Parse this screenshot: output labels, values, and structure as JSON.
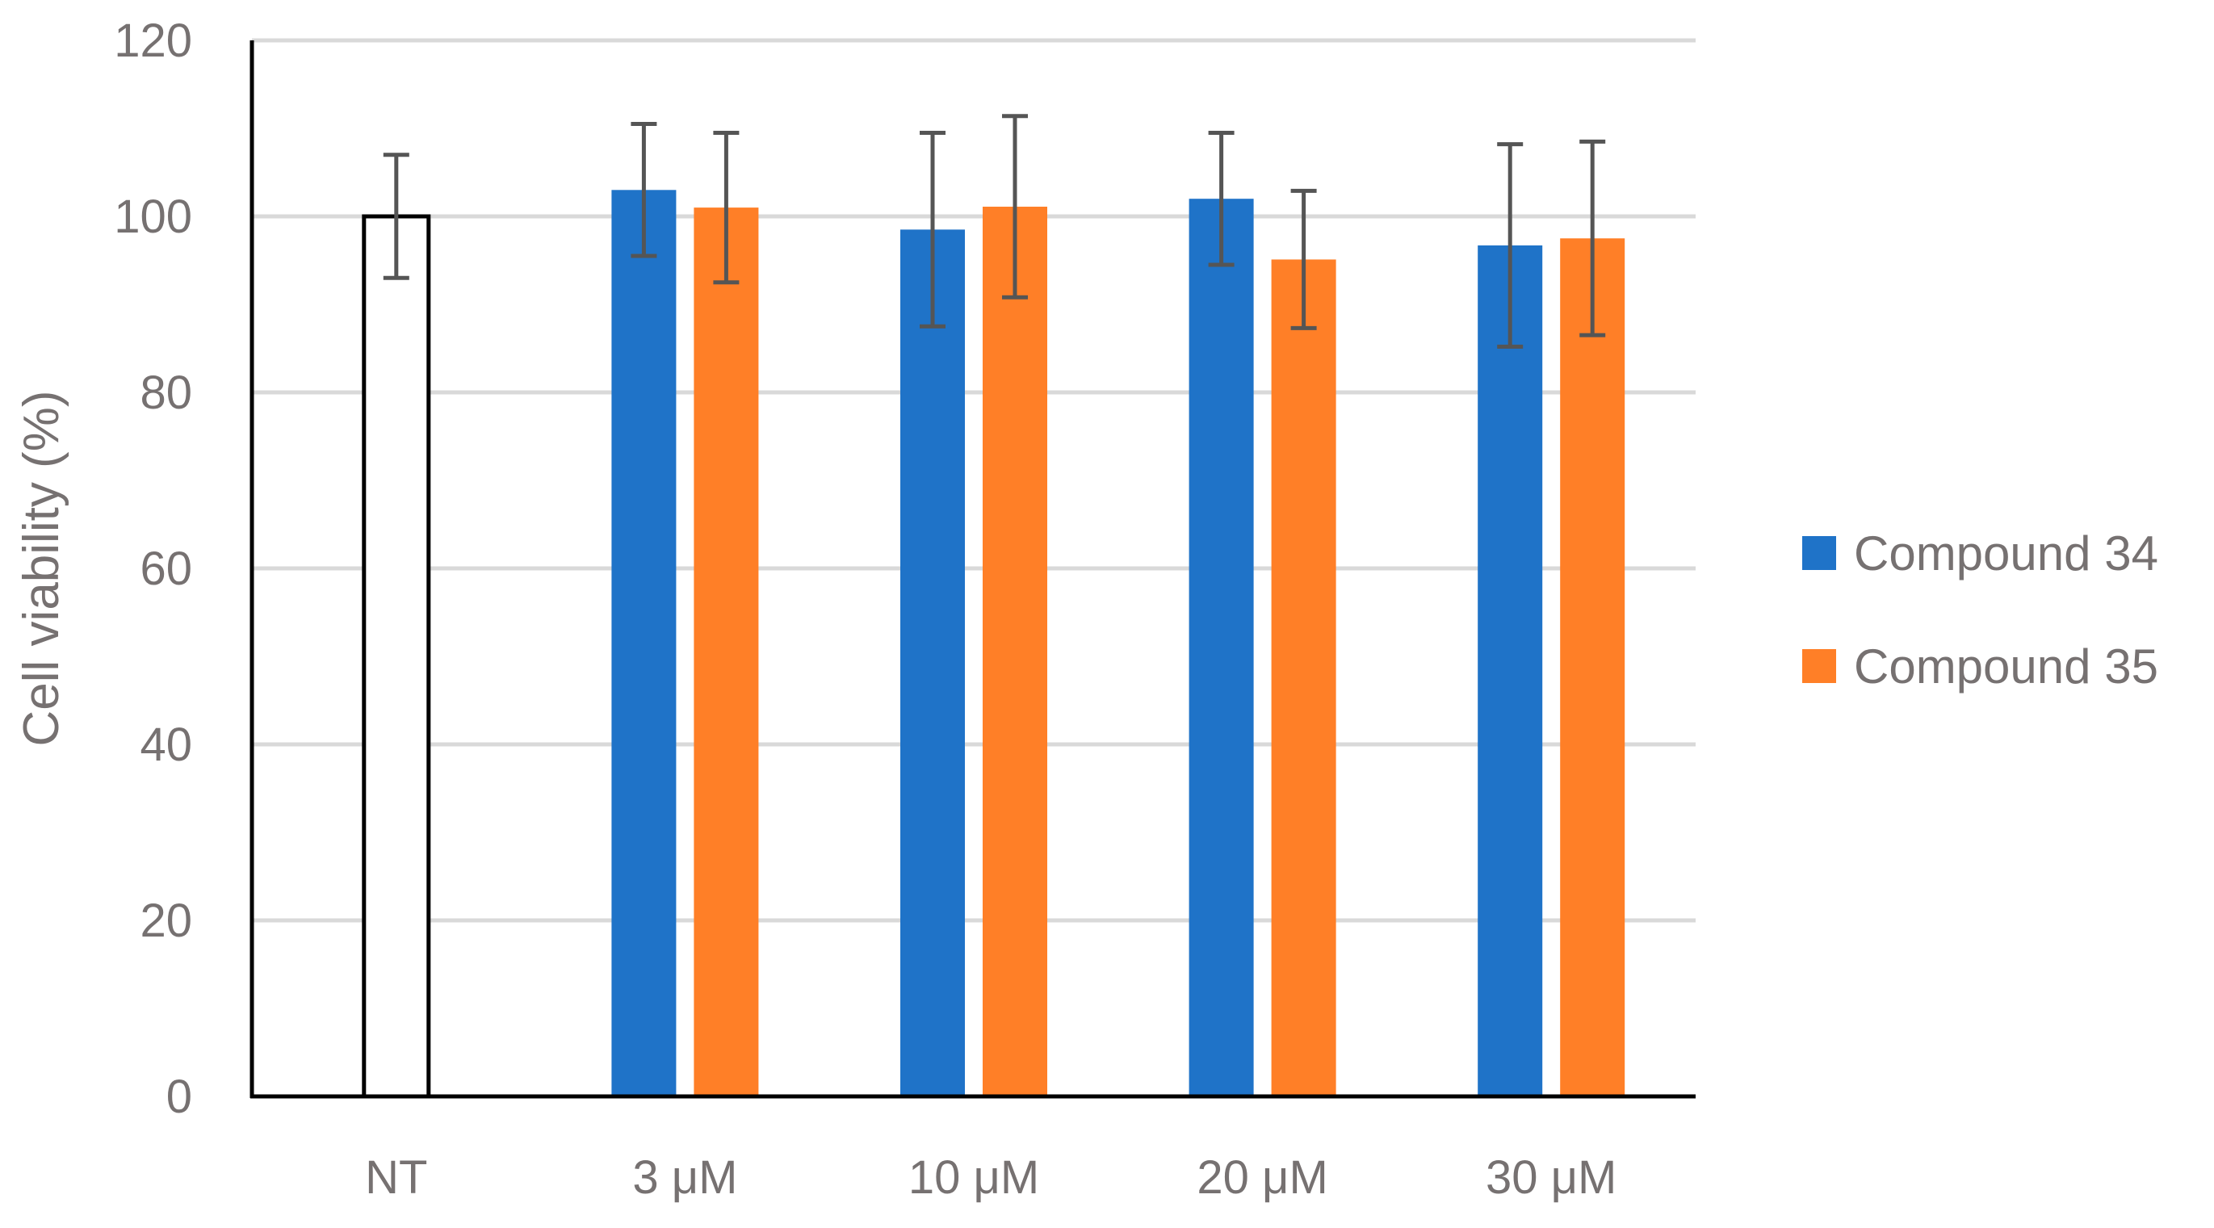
{
  "chart_data": {
    "type": "bar",
    "title": "",
    "xlabel": "",
    "ylabel": "Cell viability (%)",
    "ylim": [
      0,
      120
    ],
    "yticks": [
      0,
      20,
      40,
      60,
      80,
      100,
      120
    ],
    "grid": true,
    "legend_position": "right",
    "categories": [
      "NT",
      "3 μM",
      "10 μM",
      "20 μM",
      "30 μM"
    ],
    "control": {
      "category": "NT",
      "value": 100,
      "error": 7,
      "style": "outline",
      "color": "#000000"
    },
    "series": [
      {
        "name": "Compound 34",
        "color": "#1F73C8",
        "values": [
          null,
          103,
          98.5,
          102,
          96.7
        ],
        "errors": [
          null,
          7.5,
          11,
          7.5,
          11.5
        ]
      },
      {
        "name": "Compound 35",
        "color": "#FF7F27",
        "values": [
          null,
          101,
          101.1,
          95.1,
          97.5
        ],
        "errors": [
          null,
          8.5,
          10.3,
          7.8,
          11
        ]
      }
    ],
    "error_bar_color": "#555555",
    "gridline_color": "#D9D9D9",
    "axis_color": "#000000"
  }
}
